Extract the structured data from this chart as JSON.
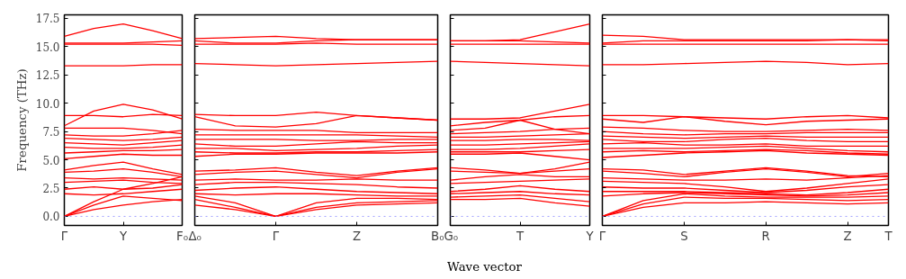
{
  "chart_data": [
    {
      "type": "line",
      "ylabel": "Frequency (THz)",
      "categories": [
        "Γ",
        null,
        "Y",
        null,
        "F₀"
      ],
      "ylim": [
        -0.8,
        17.8
      ],
      "yticks": [
        {
          "value": 0,
          "label": "0.0"
        },
        2.5,
        {
          "value": 5,
          "label": "5.0"
        },
        7.5,
        {
          "value": 10,
          "label": "10.0"
        },
        12.5,
        {
          "value": 15,
          "label": "15.0"
        },
        17.5
      ],
      "grid": false,
      "line_style": "solid",
      "marker": "none",
      "ref_lines": [
        {
          "axis": "y",
          "value": 0,
          "color": "#8888ff",
          "line_style": "dotted"
        }
      ],
      "series": [
        {
          "color": "#ff0000",
          "values": [
            15.9,
            16.6,
            17.0,
            16.4,
            15.7
          ]
        },
        {
          "color": "#ff0000",
          "values": [
            15.3,
            15.3,
            15.3,
            15.4,
            15.5
          ]
        },
        {
          "color": "#ff0000",
          "values": [
            15.2,
            15.2,
            15.2,
            15.2,
            15.1
          ]
        },
        {
          "color": "#ff0000",
          "values": [
            13.3,
            13.3,
            13.3,
            13.4,
            13.4
          ]
        },
        {
          "color": "#ff0000",
          "values": [
            8.0,
            9.3,
            9.9,
            9.4,
            8.6
          ]
        },
        {
          "color": "#ff0000",
          "values": [
            8.9,
            8.9,
            8.8,
            9.0,
            8.9
          ]
        },
        {
          "color": "#ff0000",
          "values": [
            7.8,
            7.8,
            7.8,
            7.6,
            7.3
          ]
        },
        {
          "color": "#ff0000",
          "values": [
            7.2,
            7.1,
            7.1,
            7.3,
            7.6
          ]
        },
        {
          "color": "#ff0000",
          "values": [
            6.9,
            6.8,
            6.7,
            6.8,
            7.0
          ]
        },
        {
          "color": "#ff0000",
          "values": [
            6.5,
            6.4,
            6.3,
            6.5,
            6.7
          ]
        },
        {
          "color": "#ff0000",
          "values": [
            6.1,
            6.0,
            6.0,
            6.1,
            6.3
          ]
        },
        {
          "color": "#ff0000",
          "values": [
            5.6,
            5.7,
            5.8,
            5.8,
            5.9
          ]
        },
        {
          "color": "#ff0000",
          "values": [
            5.1,
            5.3,
            5.5,
            5.4,
            5.4
          ]
        },
        {
          "color": "#ff0000",
          "values": [
            4.1,
            4.5,
            4.8,
            4.2,
            3.7
          ]
        },
        {
          "color": "#ff0000",
          "values": [
            3.9,
            4.0,
            4.2,
            3.9,
            3.5
          ]
        },
        {
          "color": "#ff0000",
          "values": [
            3.4,
            3.3,
            3.4,
            3.3,
            3.2
          ]
        },
        {
          "color": "#ff0000",
          "values": [
            3.0,
            3.1,
            3.2,
            3.0,
            2.9
          ]
        },
        {
          "color": "#ff0000",
          "values": [
            2.4,
            2.6,
            2.4,
            2.5,
            2.8
          ]
        },
        {
          "color": "#ff0000",
          "values": [
            2.0,
            1.9,
            2.0,
            2.2,
            2.4
          ]
        },
        {
          "color": "#ff0000",
          "values": [
            0,
            1.3,
            2.4,
            2.9,
            3.5
          ]
        },
        {
          "color": "#ff0000",
          "values": [
            0,
            0.6,
            1.0,
            1.3,
            1.5
          ]
        },
        {
          "color": "#ff0000",
          "values": [
            0,
            1.0,
            1.8,
            1.6,
            1.4
          ]
        }
      ]
    },
    {
      "type": "line",
      "categories": [
        "Δ₀",
        null,
        "Γ",
        null,
        "Z",
        null,
        "B₀"
      ],
      "ylim": [
        -0.8,
        17.8
      ],
      "yticks": [
        0,
        2.5,
        5,
        7.5,
        10,
        12.5,
        15,
        17.5
      ],
      "tick_labels": "x",
      "grid": false,
      "line_style": "solid",
      "marker": "none",
      "ref_lines": [
        {
          "axis": "y",
          "value": 0,
          "color": "#8888ff",
          "line_style": "dotted"
        }
      ],
      "series": [
        {
          "color": "#ff0000",
          "values": [
            15.7,
            15.8,
            15.9,
            15.7,
            15.6,
            15.6,
            15.6
          ]
        },
        {
          "color": "#ff0000",
          "values": [
            15.5,
            15.3,
            15.3,
            15.5,
            15.6,
            15.6,
            15.6
          ]
        },
        {
          "color": "#ff0000",
          "values": [
            15.2,
            15.2,
            15.2,
            15.3,
            15.2,
            15.2,
            15.2
          ]
        },
        {
          "color": "#ff0000",
          "values": [
            13.5,
            13.4,
            13.3,
            13.4,
            13.5,
            13.6,
            13.7
          ]
        },
        {
          "color": "#ff0000",
          "values": [
            9.0,
            8.9,
            8.9,
            9.2,
            8.9,
            8.7,
            8.5
          ]
        },
        {
          "color": "#ff0000",
          "values": [
            8.8,
            8.0,
            7.9,
            8.2,
            8.9,
            8.7,
            8.5
          ]
        },
        {
          "color": "#ff0000",
          "values": [
            7.7,
            7.6,
            7.6,
            7.6,
            7.4,
            7.4,
            7.4
          ]
        },
        {
          "color": "#ff0000",
          "values": [
            7.2,
            7.2,
            7.2,
            7.2,
            7.2,
            7.1,
            7.0
          ]
        },
        {
          "color": "#ff0000",
          "values": [
            6.8,
            6.8,
            6.8,
            6.7,
            6.7,
            6.8,
            6.8
          ]
        },
        {
          "color": "#ff0000",
          "values": [
            6.4,
            6.2,
            6.2,
            6.4,
            6.6,
            6.5,
            6.5
          ]
        },
        {
          "color": "#ff0000",
          "values": [
            6.0,
            6.0,
            5.8,
            5.9,
            6.0,
            6.2,
            6.3
          ]
        },
        {
          "color": "#ff0000",
          "values": [
            5.7,
            5.6,
            5.6,
            5.7,
            5.7,
            5.8,
            5.9
          ]
        },
        {
          "color": "#ff0000",
          "values": [
            5.3,
            5.5,
            5.5,
            5.6,
            5.6,
            5.6,
            5.7
          ]
        },
        {
          "color": "#ff0000",
          "values": [
            4.0,
            4.1,
            4.3,
            3.9,
            3.6,
            4.0,
            4.3
          ]
        },
        {
          "color": "#ff0000",
          "values": [
            3.7,
            3.9,
            4.0,
            3.7,
            3.4,
            3.9,
            4.2
          ]
        },
        {
          "color": "#ff0000",
          "values": [
            3.2,
            3.3,
            3.2,
            3.2,
            3.3,
            3.2,
            3.2
          ]
        },
        {
          "color": "#ff0000",
          "values": [
            2.8,
            3.0,
            3.0,
            2.9,
            2.8,
            2.6,
            2.5
          ]
        },
        {
          "color": "#ff0000",
          "values": [
            2.3,
            2.5,
            2.6,
            2.4,
            2.2,
            2.1,
            2.0
          ]
        },
        {
          "color": "#ff0000",
          "values": [
            2.0,
            1.9,
            2.0,
            2.0,
            1.9,
            1.8,
            1.8
          ]
        },
        {
          "color": "#ff0000",
          "values": [
            1.8,
            1.2,
            0,
            1.2,
            1.6,
            1.6,
            1.5
          ]
        },
        {
          "color": "#ff0000",
          "values": [
            1.5,
            0.8,
            0,
            0.8,
            1.2,
            1.3,
            1.4
          ]
        },
        {
          "color": "#ff0000",
          "values": [
            1.0,
            0.6,
            0,
            0.6,
            1.0,
            1.1,
            1.2
          ]
        }
      ]
    },
    {
      "type": "line",
      "xlabel": "Wave vector",
      "categories": [
        "G₀",
        null,
        "T",
        null,
        "Y"
      ],
      "ylim": [
        -0.8,
        17.8
      ],
      "yticks": [
        0,
        2.5,
        5,
        7.5,
        10,
        12.5,
        15,
        17.5
      ],
      "tick_labels": "x",
      "grid": false,
      "line_style": "solid",
      "marker": "none",
      "ref_lines": [
        {
          "axis": "y",
          "value": 0,
          "color": "#8888ff",
          "line_style": "dotted"
        }
      ],
      "series": [
        {
          "color": "#ff0000",
          "values": [
            15.5,
            15.5,
            15.6,
            16.3,
            17.0
          ]
        },
        {
          "color": "#ff0000",
          "values": [
            15.5,
            15.5,
            15.5,
            15.4,
            15.3
          ]
        },
        {
          "color": "#ff0000",
          "values": [
            15.2,
            15.2,
            15.2,
            15.2,
            15.2
          ]
        },
        {
          "color": "#ff0000",
          "values": [
            13.7,
            13.6,
            13.5,
            13.4,
            13.3
          ]
        },
        {
          "color": "#ff0000",
          "values": [
            8.6,
            8.6,
            8.7,
            9.3,
            9.9
          ]
        },
        {
          "color": "#ff0000",
          "values": [
            8.0,
            8.3,
            8.5,
            8.8,
            8.9
          ]
        },
        {
          "color": "#ff0000",
          "values": [
            7.6,
            7.8,
            8.5,
            7.7,
            7.3
          ]
        },
        {
          "color": "#ff0000",
          "values": [
            7.3,
            7.4,
            7.5,
            7.7,
            7.8
          ]
        },
        {
          "color": "#ff0000",
          "values": [
            7.0,
            7.0,
            7.1,
            7.2,
            7.3
          ]
        },
        {
          "color": "#ff0000",
          "values": [
            6.7,
            6.7,
            6.8,
            6.8,
            6.7
          ]
        },
        {
          "color": "#ff0000",
          "values": [
            6.3,
            6.3,
            6.4,
            6.5,
            6.6
          ]
        },
        {
          "color": "#ff0000",
          "values": [
            5.9,
            5.9,
            6.0,
            6.2,
            6.4
          ]
        },
        {
          "color": "#ff0000",
          "values": [
            5.7,
            5.7,
            5.7,
            5.8,
            5.9
          ]
        },
        {
          "color": "#ff0000",
          "values": [
            5.5,
            5.5,
            5.6,
            5.3,
            5.0
          ]
        },
        {
          "color": "#ff0000",
          "values": [
            4.3,
            4.1,
            3.8,
            4.2,
            4.8
          ]
        },
        {
          "color": "#ff0000",
          "values": [
            4.0,
            3.9,
            3.8,
            4.0,
            4.2
          ]
        },
        {
          "color": "#ff0000",
          "values": [
            3.2,
            3.5,
            3.7,
            3.5,
            3.5
          ]
        },
        {
          "color": "#ff0000",
          "values": [
            2.9,
            3.0,
            3.1,
            3.2,
            3.3
          ]
        },
        {
          "color": "#ff0000",
          "values": [
            2.2,
            2.4,
            2.7,
            2.4,
            2.2
          ]
        },
        {
          "color": "#ff0000",
          "values": [
            2.0,
            2.1,
            2.2,
            2.0,
            1.9
          ]
        },
        {
          "color": "#ff0000",
          "values": [
            1.7,
            1.8,
            1.9,
            1.6,
            1.3
          ]
        },
        {
          "color": "#ff0000",
          "values": [
            1.5,
            1.5,
            1.6,
            1.2,
            0.9
          ]
        }
      ]
    },
    {
      "type": "line",
      "categories": [
        "Γ",
        null,
        "S",
        null,
        "R",
        null,
        "Z",
        "T"
      ],
      "ylim": [
        -0.8,
        17.8
      ],
      "yticks": [
        0,
        2.5,
        5,
        7.5,
        10,
        12.5,
        15,
        17.5
      ],
      "tick_labels": "x",
      "grid": false,
      "line_style": "solid",
      "marker": "none",
      "ref_lines": [
        {
          "axis": "y",
          "value": 0,
          "color": "#8888ff",
          "line_style": "dotted"
        }
      ],
      "series": [
        {
          "color": "#ff0000",
          "values": [
            16.0,
            15.9,
            15.6,
            15.6,
            15.6,
            15.6,
            15.6,
            15.6
          ]
        },
        {
          "color": "#ff0000",
          "values": [
            15.3,
            15.5,
            15.5,
            15.5,
            15.5,
            15.5,
            15.6,
            15.5
          ]
        },
        {
          "color": "#ff0000",
          "values": [
            15.2,
            15.2,
            15.2,
            15.2,
            15.2,
            15.2,
            15.2,
            15.2
          ]
        },
        {
          "color": "#ff0000",
          "values": [
            13.4,
            13.4,
            13.5,
            13.6,
            13.7,
            13.6,
            13.4,
            13.5
          ]
        },
        {
          "color": "#ff0000",
          "values": [
            8.9,
            8.9,
            8.8,
            8.7,
            8.6,
            8.8,
            8.9,
            8.7
          ]
        },
        {
          "color": "#ff0000",
          "values": [
            8.6,
            8.3,
            8.8,
            8.4,
            8.1,
            8.4,
            8.5,
            8.6
          ]
        },
        {
          "color": "#ff0000",
          "values": [
            7.9,
            7.8,
            7.6,
            7.5,
            7.5,
            7.6,
            7.7,
            7.6
          ]
        },
        {
          "color": "#ff0000",
          "values": [
            7.5,
            7.3,
            7.2,
            7.3,
            7.3,
            7.4,
            7.4,
            7.4
          ]
        },
        {
          "color": "#ff0000",
          "values": [
            7.1,
            7.0,
            6.9,
            7.0,
            7.1,
            7.0,
            7.0,
            7.0
          ]
        },
        {
          "color": "#ff0000",
          "values": [
            6.8,
            6.6,
            6.6,
            6.8,
            6.9,
            6.7,
            6.6,
            6.6
          ]
        },
        {
          "color": "#ff0000",
          "values": [
            6.4,
            6.5,
            6.3,
            6.3,
            6.4,
            6.2,
            6.2,
            6.2
          ]
        },
        {
          "color": "#ff0000",
          "values": [
            6.0,
            6.0,
            6.0,
            6.1,
            6.2,
            6.0,
            5.8,
            5.7
          ]
        },
        {
          "color": "#ff0000",
          "values": [
            5.7,
            5.8,
            5.7,
            5.8,
            5.9,
            5.8,
            5.6,
            5.5
          ]
        },
        {
          "color": "#ff0000",
          "values": [
            5.2,
            5.4,
            5.6,
            5.7,
            5.8,
            5.6,
            5.5,
            5.4
          ]
        },
        {
          "color": "#ff0000",
          "values": [
            4.2,
            4.1,
            3.7,
            4.0,
            4.3,
            4.0,
            3.6,
            3.5
          ]
        },
        {
          "color": "#ff0000",
          "values": [
            4.0,
            3.8,
            3.5,
            3.9,
            4.2,
            3.9,
            3.5,
            3.8
          ]
        },
        {
          "color": "#ff0000",
          "values": [
            3.4,
            3.3,
            3.2,
            3.2,
            3.3,
            3.2,
            3.4,
            3.6
          ]
        },
        {
          "color": "#ff0000",
          "values": [
            3.1,
            3.0,
            2.9,
            2.6,
            2.2,
            2.5,
            2.9,
            3.3
          ]
        },
        {
          "color": "#ff0000",
          "values": [
            2.6,
            2.5,
            2.5,
            2.3,
            2.1,
            2.3,
            2.6,
            2.8
          ]
        },
        {
          "color": "#ff0000",
          "values": [
            2.2,
            2.2,
            2.2,
            2.1,
            2.0,
            1.9,
            2.1,
            2.4
          ]
        },
        {
          "color": "#ff0000",
          "values": [
            1.8,
            2.0,
            2.1,
            2.0,
            1.9,
            1.8,
            1.9,
            2.1
          ]
        },
        {
          "color": "#ff0000",
          "values": [
            0,
            1.1,
            1.7,
            1.6,
            1.6,
            1.5,
            1.4,
            1.5
          ]
        },
        {
          "color": "#ff0000",
          "values": [
            0,
            0.8,
            1.2,
            1.2,
            1.3,
            1.2,
            1.1,
            1.2
          ]
        },
        {
          "color": "#ff0000",
          "values": [
            0,
            1.4,
            2.0,
            1.8,
            1.7,
            1.7,
            1.7,
            1.8
          ]
        }
      ]
    }
  ]
}
